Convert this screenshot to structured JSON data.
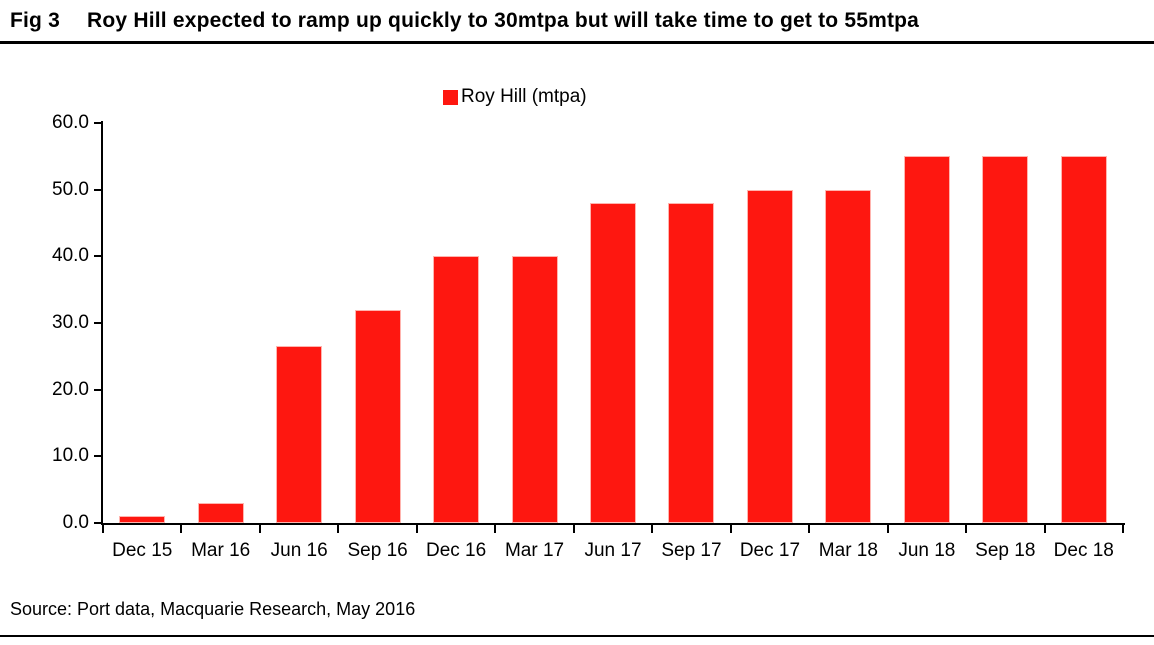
{
  "header": {
    "fig_label": "Fig 3",
    "title": "Roy Hill expected to ramp up quickly to 30mtpa but will take time to get to 55mtpa"
  },
  "chart_data": {
    "type": "bar",
    "title": "Fig 3  Roy Hill expected to ramp up quickly to 30mtpa but will take time to get to 55mtpa",
    "categories": [
      "Dec 15",
      "Mar 16",
      "Jun 16",
      "Sep 16",
      "Dec 16",
      "Mar 17",
      "Jun 17",
      "Sep 17",
      "Dec 17",
      "Mar 18",
      "Jun 18",
      "Sep 18",
      "Dec 18"
    ],
    "series": [
      {
        "name": "Roy Hill (mtpa)",
        "values": [
          1.0,
          3.0,
          26.5,
          32.0,
          40.0,
          40.0,
          48.0,
          48.0,
          50.0,
          50.0,
          55.0,
          55.0,
          55.0
        ]
      }
    ],
    "xlabel": "",
    "ylabel": "",
    "ylim": [
      0,
      60
    ],
    "ytick_labels": [
      "0.0",
      "10.0",
      "20.0",
      "30.0",
      "40.0",
      "50.0",
      "60.0"
    ],
    "grid": false,
    "legend_position": "top-center",
    "bar_color": "#FE1710",
    "bar_border_color": "#FFB4AE",
    "axis_color": "#000000"
  },
  "legend": {
    "label": "Roy Hill (mtpa)",
    "swatch_color": "#FE1710"
  },
  "footer": {
    "source": "Source: Port data, Macquarie Research, May 2016"
  }
}
